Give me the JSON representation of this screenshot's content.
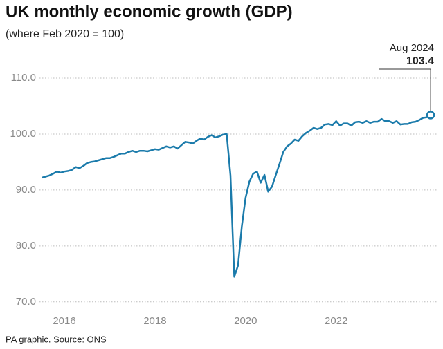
{
  "chart_data": {
    "type": "line",
    "title": "UK monthly economic growth (GDP)",
    "subtitle": "(where Feb 2020 = 100)",
    "source": "PA graphic. Source: ONS",
    "annotation": "Aug 2024",
    "color": "#1b7bab",
    "grid": true,
    "xlim": [
      2015.95,
      2024.75
    ],
    "ylim": [
      68,
      112
    ],
    "xticks": [
      {
        "value": 2016.5,
        "label": "2016"
      },
      {
        "value": 2018.5,
        "label": "2018"
      },
      {
        "value": 2020.5,
        "label": "2020"
      },
      {
        "value": 2022.5,
        "label": "2022"
      }
    ],
    "yticks": [
      {
        "value": 70,
        "label": "70.0"
      },
      {
        "value": 80,
        "label": "80.0"
      },
      {
        "value": 90,
        "label": "90.0"
      },
      {
        "value": 100,
        "label": "100.0"
      },
      {
        "value": 110,
        "label": "110.0"
      }
    ],
    "x": [
      2016.0,
      2016.083,
      2016.167,
      2016.25,
      2016.333,
      2016.417,
      2016.5,
      2016.583,
      2016.667,
      2016.75,
      2016.833,
      2016.917,
      2017.0,
      2017.083,
      2017.167,
      2017.25,
      2017.333,
      2017.417,
      2017.5,
      2017.583,
      2017.667,
      2017.75,
      2017.833,
      2017.917,
      2018.0,
      2018.083,
      2018.167,
      2018.25,
      2018.333,
      2018.417,
      2018.5,
      2018.583,
      2018.667,
      2018.75,
      2018.833,
      2018.917,
      2019.0,
      2019.083,
      2019.167,
      2019.25,
      2019.333,
      2019.417,
      2019.5,
      2019.583,
      2019.667,
      2019.75,
      2019.833,
      2019.917,
      2020.0,
      2020.083,
      2020.167,
      2020.25,
      2020.333,
      2020.417,
      2020.5,
      2020.583,
      2020.667,
      2020.75,
      2020.833,
      2020.917,
      2021.0,
      2021.083,
      2021.167,
      2021.25,
      2021.333,
      2021.417,
      2021.5,
      2021.583,
      2021.667,
      2021.75,
      2021.833,
      2021.917,
      2022.0,
      2022.083,
      2022.167,
      2022.25,
      2022.333,
      2022.417,
      2022.5,
      2022.583,
      2022.667,
      2022.75,
      2022.833,
      2022.917,
      2023.0,
      2023.083,
      2023.167,
      2023.25,
      2023.333,
      2023.417,
      2023.5,
      2023.583,
      2023.667,
      2023.75,
      2023.833,
      2023.917,
      2024.0,
      2024.083,
      2024.167,
      2024.25,
      2024.333,
      2024.417,
      2024.5,
      2024.583
    ],
    "values": [
      92.2,
      92.4,
      92.6,
      92.9,
      93.3,
      93.1,
      93.3,
      93.4,
      93.6,
      94.1,
      93.9,
      94.3,
      94.8,
      95.0,
      95.1,
      95.3,
      95.5,
      95.7,
      95.7,
      95.9,
      96.2,
      96.5,
      96.5,
      96.8,
      97.0,
      96.8,
      97.0,
      97.0,
      96.9,
      97.1,
      97.3,
      97.2,
      97.5,
      97.8,
      97.6,
      97.8,
      97.4,
      98.0,
      98.6,
      98.5,
      98.3,
      98.8,
      99.2,
      99.0,
      99.5,
      99.8,
      99.4,
      99.6,
      99.9,
      100.0,
      92.6,
      74.5,
      76.5,
      83.5,
      88.6,
      91.5,
      92.9,
      93.3,
      91.3,
      92.7,
      89.7,
      90.6,
      92.7,
      94.7,
      96.8,
      97.8,
      98.3,
      99.0,
      98.8,
      99.6,
      100.2,
      100.6,
      101.1,
      100.9,
      101.1,
      101.7,
      101.8,
      101.6,
      102.3,
      101.5,
      101.9,
      101.9,
      101.5,
      102.1,
      102.2,
      102.0,
      102.3,
      102.0,
      102.2,
      102.2,
      102.7,
      102.3,
      102.3,
      102.0,
      102.3,
      101.7,
      101.8,
      101.8,
      102.1,
      102.2,
      102.5,
      102.9,
      103.0,
      103.4
    ]
  }
}
